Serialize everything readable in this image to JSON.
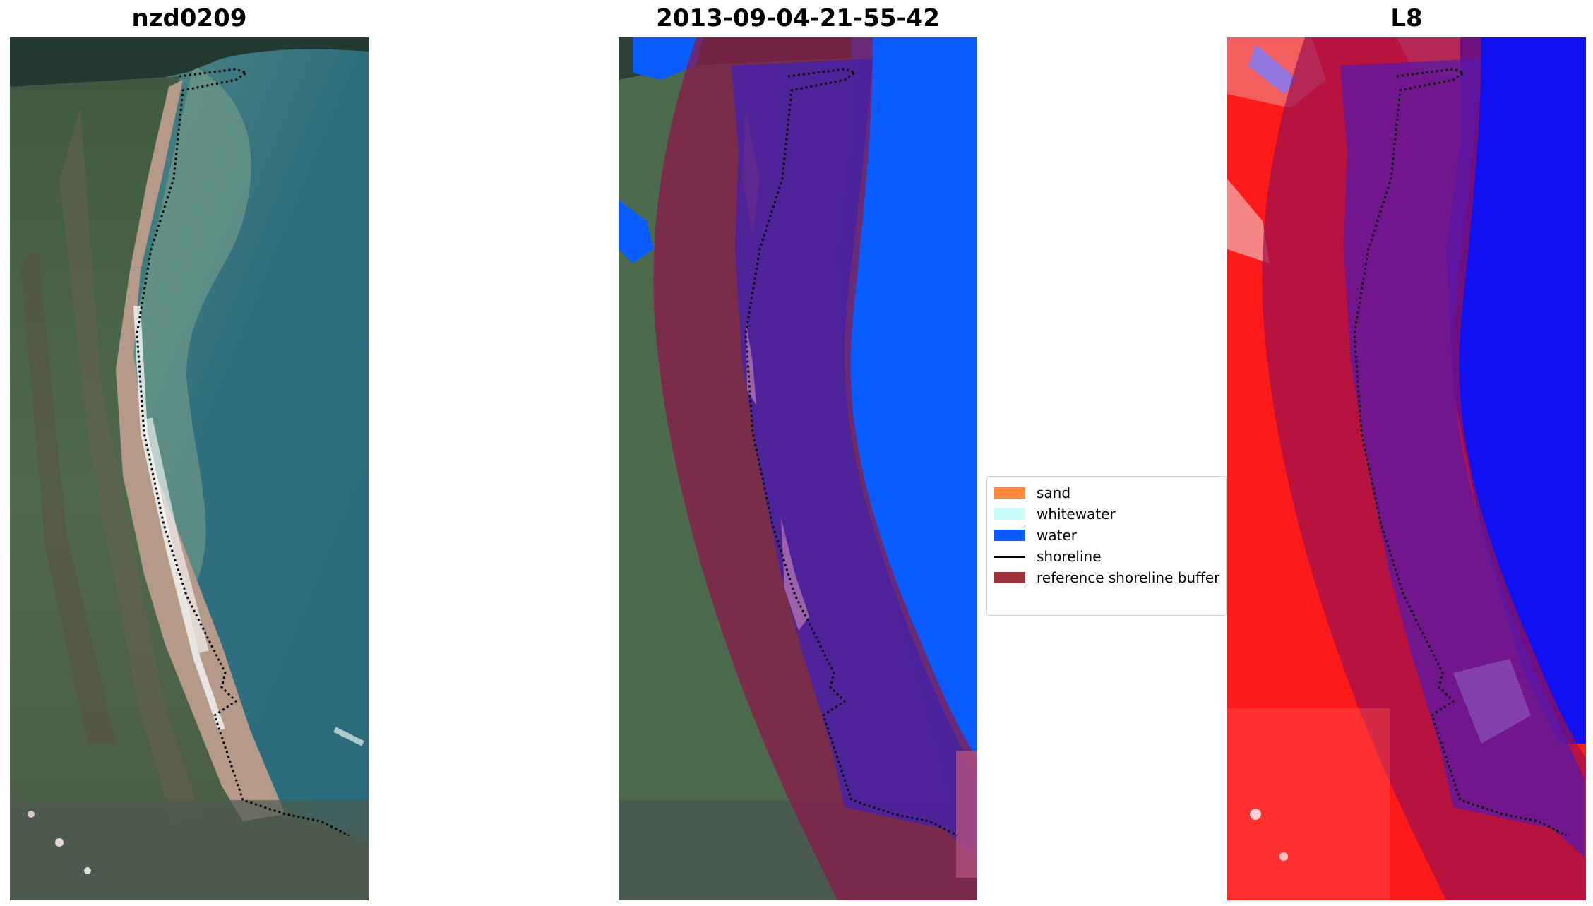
{
  "panels": [
    {
      "title": "nzd0209"
    },
    {
      "title": "2013-09-04-21-55-42"
    },
    {
      "title": "L8"
    }
  ],
  "legend": {
    "items": [
      {
        "label": "sand",
        "color": "#ff8a3d",
        "kind": "patch"
      },
      {
        "label": "whitewater",
        "color": "#c9fbf8",
        "kind": "patch"
      },
      {
        "label": "water",
        "color": "#0a5cff",
        "kind": "patch"
      },
      {
        "label": "shoreline",
        "color": "#000000",
        "kind": "line"
      },
      {
        "label": "reference shoreline buffer",
        "color": "#a0303a",
        "kind": "patch"
      }
    ]
  },
  "colors": {
    "buffer_overlay": "#8a1a4a",
    "water_class": "#0a5cff",
    "mndwi_land": "#ff1a1a",
    "mndwi_water": "#1010f0"
  }
}
